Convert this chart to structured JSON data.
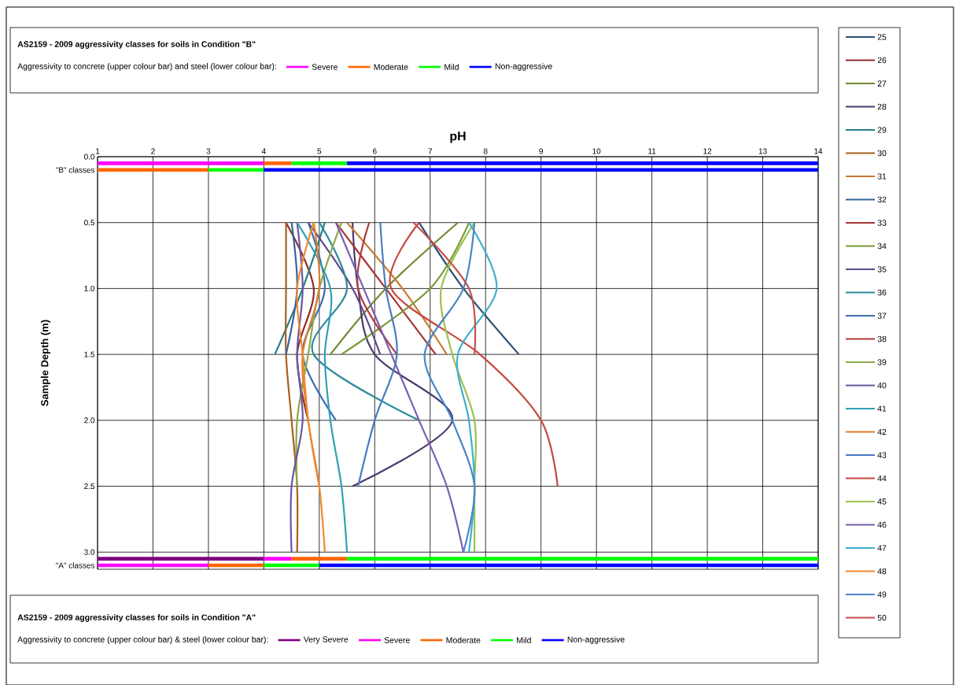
{
  "chart_data": {
    "type": "line",
    "xlabel": "pH",
    "ylabel": "Sample Depth (m)",
    "xlim": [
      1,
      14
    ],
    "ylim": [
      3.13,
      0
    ],
    "xticks": [
      1,
      2,
      3,
      4,
      5,
      6,
      7,
      8,
      9,
      10,
      11,
      12,
      13,
      14
    ],
    "yticks": [
      {
        "value": 0,
        "label": "0.0"
      },
      {
        "value": 0.1,
        "label": "\"B\" classes"
      },
      {
        "value": 0.5,
        "label": "0.5"
      },
      {
        "value": 1.0,
        "label": "1.0"
      },
      {
        "value": 1.5,
        "label": "1.5"
      },
      {
        "value": 2.0,
        "label": "2.0"
      },
      {
        "value": 2.5,
        "label": "2.5"
      },
      {
        "value": 3.0,
        "label": "3.0"
      },
      {
        "value": 3.1,
        "label": "\"A\" classes"
      }
    ],
    "grid": true,
    "legend": "right",
    "annotations": [
      "AS2159 - 2009 aggressivity classes for soils in Condition \"B\"",
      "Aggressivity to concrete (upper colour bar) and steel (lower colour bar):",
      "AS2159 - 2009 aggressivity classes for soils in Condition \"A\"",
      "Aggressivity to concrete (upper colour bar) & steel (lower colour bar):"
    ],
    "series": [
      {
        "name": "25",
        "color": "#2b4f73",
        "x": [
          6.8,
          7.6,
          8.6
        ],
        "values": [
          0.5,
          1.0,
          1.5
        ]
      },
      {
        "name": "26",
        "color": "#8e2c2c",
        "x": [
          4.4,
          4.9,
          4.6,
          4.8
        ],
        "values": [
          0.5,
          1.0,
          1.5,
          2.0
        ]
      },
      {
        "name": "27",
        "color": "#6e8a30",
        "x": [
          7.5,
          6.2,
          5.2
        ],
        "values": [
          0.5,
          1.0,
          1.5
        ]
      },
      {
        "name": "28",
        "color": "#4c3b6e",
        "x": [
          5.6,
          5.7,
          6.0,
          7.4,
          5.6
        ],
        "values": [
          0.5,
          1.0,
          1.5,
          2.0,
          2.5
        ]
      },
      {
        "name": "29",
        "color": "#2a7d8a",
        "x": [
          5.1,
          4.7,
          4.2
        ],
        "values": [
          0.5,
          1.0,
          1.5
        ]
      },
      {
        "name": "30",
        "color": "#a8601e",
        "x": [
          4.4,
          4.4,
          4.4,
          4.5,
          4.6,
          4.6
        ],
        "values": [
          0.5,
          1.0,
          1.5,
          2.0,
          2.5,
          3.0
        ]
      },
      {
        "name": "31",
        "color": "#c97b30",
        "x": [
          5.5,
          6.5,
          7.3
        ],
        "values": [
          0.5,
          1.0,
          1.5
        ]
      },
      {
        "name": "32",
        "color": "#36649c",
        "x": [
          4.5,
          4.6,
          4.4
        ],
        "values": [
          0.5,
          1.0,
          1.5
        ]
      },
      {
        "name": "33",
        "color": "#a63434",
        "x": [
          5.3,
          6.2,
          7.1
        ],
        "values": [
          0.5,
          1.0,
          1.5
        ]
      },
      {
        "name": "34",
        "color": "#7c9c3b",
        "x": [
          7.7,
          7.0,
          5.4
        ],
        "values": [
          0.5,
          1.0,
          1.5
        ]
      },
      {
        "name": "35",
        "color": "#5f4b8b",
        "x": [
          4.8,
          5.6,
          6.1
        ],
        "values": [
          0.5,
          1.0,
          1.5
        ]
      },
      {
        "name": "36",
        "color": "#2f8a9c",
        "x": [
          5.0,
          5.5,
          4.9,
          6.8
        ],
        "values": [
          0.5,
          1.0,
          1.5,
          2.0
        ]
      },
      {
        "name": "37",
        "color": "#3d6cab",
        "x": [
          4.8,
          5.1,
          4.7,
          5.3
        ],
        "values": [
          0.5,
          1.0,
          1.5,
          2.0
        ]
      },
      {
        "name": "38",
        "color": "#b23b3b",
        "x": [
          5.9,
          5.7,
          6.4
        ],
        "values": [
          0.5,
          1.0,
          1.5
        ]
      },
      {
        "name": "39",
        "color": "#8aaa46",
        "x": [
          5.4,
          5.0,
          4.8,
          4.6,
          4.6
        ],
        "values": [
          0.5,
          1.0,
          1.5,
          2.0,
          2.5
        ]
      },
      {
        "name": "40",
        "color": "#6a55a2",
        "x": [
          4.6,
          4.7,
          4.6,
          4.7,
          4.5,
          4.5
        ],
        "values": [
          0.5,
          1.0,
          1.5,
          2.0,
          2.5,
          3.0
        ]
      },
      {
        "name": "41",
        "color": "#31a0b6",
        "x": [
          4.6,
          5.2,
          5.1,
          5.2,
          5.4,
          5.5
        ],
        "values": [
          0.5,
          1.0,
          1.5,
          2.0,
          2.5,
          3.0
        ]
      },
      {
        "name": "42",
        "color": "#de7f2b",
        "x": [
          4.9,
          5.0,
          4.7,
          4.8,
          5.0
        ],
        "values": [
          0.5,
          1.0,
          1.5,
          2.0,
          2.5
        ]
      },
      {
        "name": "43",
        "color": "#4a7cc0",
        "x": [
          6.1,
          6.2,
          6.4,
          6.0,
          5.7
        ],
        "values": [
          0.5,
          1.0,
          1.5,
          2.0,
          2.5
        ]
      },
      {
        "name": "44",
        "color": "#c44b40",
        "x": [
          6.8,
          6.3,
          7.9,
          9.0,
          9.3
        ],
        "values": [
          0.5,
          1.0,
          1.5,
          2.0,
          2.5
        ]
      },
      {
        "name": "45",
        "color": "#9bc24e",
        "x": [
          7.8,
          7.2,
          7.4,
          7.8,
          7.8,
          7.8
        ],
        "values": [
          0.5,
          1.0,
          1.5,
          2.0,
          2.5,
          3.0
        ]
      },
      {
        "name": "46",
        "color": "#7a60b0",
        "x": [
          5.3,
          5.8,
          6.3,
          6.8,
          7.3,
          7.6
        ],
        "values": [
          0.5,
          1.0,
          1.5,
          2.0,
          2.5,
          3.0
        ]
      },
      {
        "name": "47",
        "color": "#3db0cc",
        "x": [
          7.7,
          8.2,
          7.5,
          7.7,
          7.8,
          7.7
        ],
        "values": [
          0.5,
          1.0,
          1.5,
          2.0,
          2.5,
          3.0
        ]
      },
      {
        "name": "48",
        "color": "#f08a30",
        "x": [
          4.9,
          4.6,
          4.7,
          4.8,
          5.0,
          5.1
        ],
        "values": [
          0.5,
          1.0,
          1.5,
          2.0,
          2.5,
          3.0
        ]
      },
      {
        "name": "49",
        "color": "#4a86c8",
        "x": [
          7.8,
          7.6,
          6.9,
          7.4,
          7.8,
          7.6
        ],
        "values": [
          0.5,
          1.0,
          1.5,
          2.0,
          2.5,
          3.0
        ]
      },
      {
        "name": "50",
        "color": "#c8504a",
        "x": [
          6.7,
          7.7,
          7.8
        ],
        "values": [
          0.5,
          1.0,
          1.5
        ]
      },
      {
        "name": "Severe",
        "color": "#ff00ff",
        "x": [
          1,
          4
        ],
        "values": [
          0.05,
          0.05
        ]
      },
      {
        "name": "Moderate",
        "color": "#ff6600",
        "x": [
          4,
          4.5,
          null,
          1,
          3
        ],
        "values": [
          0.05,
          0.05,
          null,
          0.1,
          0.1
        ]
      },
      {
        "name": "Mild",
        "color": "#00ff00",
        "x": [
          4.5,
          5.5,
          null,
          3,
          4
        ],
        "values": [
          0.05,
          0.05,
          null,
          0.1,
          0.1
        ]
      },
      {
        "name": "Non-aggressive",
        "color": "#0000ff",
        "x": [
          5.5,
          14,
          null,
          4,
          14
        ],
        "values": [
          0.05,
          0.05,
          null,
          0.1,
          0.1
        ]
      },
      {
        "name": "Very Severe",
        "color": "#800080",
        "x": [
          1,
          4
        ],
        "values": [
          3.05,
          3.05
        ]
      },
      {
        "name": "Severe",
        "color": "#ff00ff",
        "x": [
          4,
          4.5,
          null,
          1,
          3
        ],
        "values": [
          3.05,
          3.05,
          null,
          3.1,
          3.1
        ]
      },
      {
        "name": "Moderate",
        "color": "#ff6600",
        "x": [
          4.5,
          5.5,
          null,
          3,
          4
        ],
        "values": [
          3.05,
          3.05,
          null,
          3.1,
          3.1
        ]
      },
      {
        "name": "Mild",
        "color": "#00ff00",
        "x": [
          5.5,
          14,
          null,
          4,
          5
        ],
        "values": [
          3.05,
          3.05,
          null,
          3.1,
          3.1
        ]
      },
      {
        "name": "Non-aggressive",
        "color": "#0000ff",
        "x": [
          5,
          14
        ],
        "values": [
          3.1,
          3.1
        ]
      }
    ]
  }
}
